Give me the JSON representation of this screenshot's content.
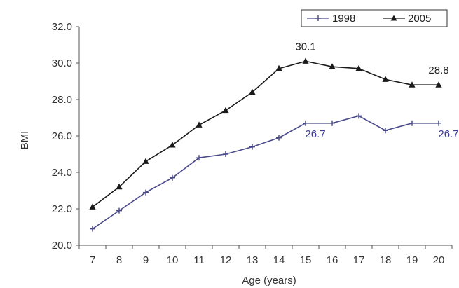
{
  "chart_data": {
    "type": "line",
    "title": "",
    "xlabel": "Age (years)",
    "ylabel": "BMI",
    "x": [
      7,
      8,
      9,
      10,
      11,
      12,
      13,
      14,
      15,
      16,
      17,
      18,
      19,
      20
    ],
    "x_tick_labels": [
      "7",
      "8",
      "9",
      "10",
      "11",
      "12",
      "13",
      "14",
      "15",
      "16",
      "17",
      "18",
      "19",
      "20"
    ],
    "y_tick_labels": [
      "20.0",
      "22.0",
      "24.0",
      "26.0",
      "28.0",
      "30.0",
      "32.0"
    ],
    "y_ticks": [
      20,
      22,
      24,
      26,
      28,
      30,
      32
    ],
    "ylim": [
      20,
      32
    ],
    "grid": false,
    "legend_placement": "top-right",
    "series": [
      {
        "name": "1998",
        "color": "#4a4a8a",
        "marker": "plus",
        "values": [
          20.9,
          21.9,
          22.9,
          23.7,
          24.8,
          25.0,
          25.4,
          25.9,
          26.7,
          26.7,
          27.1,
          26.3,
          26.7,
          26.7
        ]
      },
      {
        "name": "2005",
        "color": "#1a1a1a",
        "marker": "triangle",
        "values": [
          22.1,
          23.2,
          24.6,
          25.5,
          26.6,
          27.4,
          28.4,
          29.7,
          30.1,
          29.8,
          29.7,
          29.1,
          28.8,
          28.8
        ]
      }
    ],
    "annotations": [
      {
        "text": "30.1",
        "x": 15,
        "y": 30.1,
        "series": "2005",
        "color": "#222222"
      },
      {
        "text": "28.8",
        "x": 20,
        "y": 28.8,
        "series": "2005",
        "color": "#222222"
      },
      {
        "text": "26.7",
        "x": 15,
        "y": 26.7,
        "series": "1998",
        "color": "#3a3a9a"
      },
      {
        "text": "26.7",
        "x": 20,
        "y": 26.7,
        "series": "1998",
        "color": "#3a3a9a"
      }
    ]
  }
}
